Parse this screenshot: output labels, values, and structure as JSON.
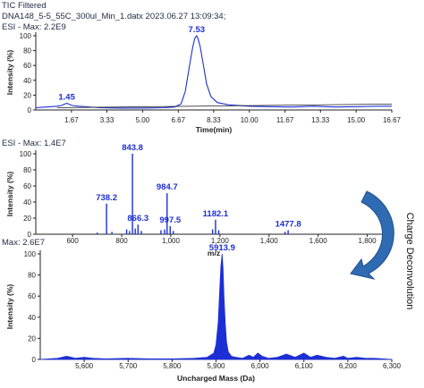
{
  "header": {
    "line1": "TIC Filtered",
    "line2": "DNA148_5-5_55C_300ul_Min_1.datx 2023.06.27 13:09:34;",
    "line3": "ESI -   Max: 2.2E9"
  },
  "side_label": "Charge Deconvolution",
  "colors": {
    "series": "#1c2fd6",
    "baseline": "#202020",
    "arrow": "#2f6bb3",
    "arrow_dark": "#1f4f8a",
    "axis": "#222222"
  },
  "chart_data": [
    {
      "type": "line",
      "title": "",
      "xlabel": "Time(min)",
      "ylabel": "Intensity (%)",
      "xlim": [
        0,
        16.67
      ],
      "ylim": [
        0,
        100
      ],
      "xticks": [
        "1.67",
        "3.33",
        "5.00",
        "6.67",
        "8.33",
        "10.00",
        "11.67",
        "13.33",
        "15.00",
        "16.67"
      ],
      "yticks": [
        "0",
        "20",
        "40",
        "60",
        "80",
        "100"
      ],
      "x_tick_values": [
        1.67,
        3.33,
        5.0,
        6.67,
        8.33,
        10.0,
        11.67,
        13.33,
        15.0,
        16.67
      ],
      "peak_labels": [
        {
          "text": "1.45",
          "x": 1.45,
          "y": 9
        },
        {
          "text": "7.53",
          "x": 7.53,
          "y": 100
        }
      ],
      "series": [
        {
          "x": [
            0,
            0.5,
            1.0,
            1.2,
            1.45,
            1.7,
            2.0,
            3.0,
            4.0,
            5.0,
            6.0,
            6.5,
            6.8,
            7.0,
            7.2,
            7.35,
            7.45,
            7.53,
            7.6,
            7.7,
            7.85,
            8.0,
            8.2,
            8.5,
            9.0,
            10.0,
            11.0,
            12.0,
            13.0,
            14.0,
            15.0,
            16.0,
            16.67
          ],
          "y": [
            3,
            4,
            5,
            6,
            9,
            6,
            5,
            3,
            2.5,
            2.5,
            3,
            4,
            8,
            25,
            60,
            85,
            97,
            100,
            96,
            85,
            60,
            35,
            18,
            10,
            7,
            5,
            4.5,
            4,
            5,
            4,
            4.5,
            5,
            5
          ]
        }
      ],
      "baseline": {
        "x": [
          1.0,
          16.67
        ],
        "y": [
          3,
          8
        ]
      }
    },
    {
      "type": "bar",
      "title": "",
      "max_label": "ESI -   Max: 1.4E7",
      "xlabel": "m/z",
      "ylabel": "Intensity (%)",
      "xlim": [
        450,
        1900
      ],
      "ylim": [
        0,
        100
      ],
      "xticks": [
        "600",
        "800",
        "1,000",
        "1,200",
        "1,400",
        "1,600",
        "1,800"
      ],
      "x_tick_values": [
        600,
        800,
        1000,
        1200,
        1400,
        1600,
        1800
      ],
      "yticks": [
        "0",
        "20",
        "40",
        "60",
        "80",
        "100"
      ],
      "peaks": [
        {
          "mz": 738.2,
          "y": 38
        },
        {
          "mz": 843.8,
          "y": 100
        },
        {
          "mz": 866.3,
          "y": 12
        },
        {
          "mz": 984.7,
          "y": 51
        },
        {
          "mz": 997.5,
          "y": 10
        },
        {
          "mz": 1182.1,
          "y": 18
        },
        {
          "mz": 1477.8,
          "y": 5
        },
        {
          "mz": 820,
          "y": 6
        },
        {
          "mz": 832,
          "y": 4
        },
        {
          "mz": 855,
          "y": 7
        },
        {
          "mz": 880,
          "y": 4
        },
        {
          "mz": 960,
          "y": 5
        },
        {
          "mz": 975,
          "y": 6
        },
        {
          "mz": 1010,
          "y": 4
        },
        {
          "mz": 1170,
          "y": 6
        },
        {
          "mz": 1195,
          "y": 5
        },
        {
          "mz": 1465,
          "y": 3
        },
        {
          "mz": 700,
          "y": 2
        },
        {
          "mz": 760,
          "y": 3
        }
      ],
      "peak_labels": [
        {
          "text": "738.2",
          "x": 738.2,
          "y": 38
        },
        {
          "text": "843.8",
          "x": 843.8,
          "y": 100
        },
        {
          "text": "866.3",
          "x": 866.3,
          "y": 12
        },
        {
          "text": "984.7",
          "x": 984.7,
          "y": 51
        },
        {
          "text": "997.5",
          "x": 997.5,
          "y": 10
        },
        {
          "text": "1182.1",
          "x": 1182.1,
          "y": 18
        },
        {
          "text": "1477.8",
          "x": 1477.8,
          "y": 5
        }
      ]
    },
    {
      "type": "area",
      "title": "",
      "max_label": "Max: 2.6E7",
      "xlabel": "Uncharged Mass (Da)",
      "ylabel": "Intensity (%)",
      "xlim": [
        5500,
        6300
      ],
      "ylim": [
        0,
        100
      ],
      "xticks": [
        "5,600",
        "5,700",
        "5,800",
        "5,900",
        "6,000",
        "6,100",
        "6,200",
        "6,300"
      ],
      "x_tick_values": [
        5600,
        5700,
        5800,
        5900,
        6000,
        6100,
        6200,
        6300
      ],
      "yticks": [
        "0",
        "20",
        "40",
        "60",
        "80",
        "100"
      ],
      "peak_labels": [
        {
          "text": "5913.9",
          "x": 5913.9,
          "y": 100
        }
      ],
      "series": [
        {
          "x": [
            5500,
            5540,
            5560,
            5580,
            5600,
            5620,
            5650,
            5700,
            5750,
            5800,
            5850,
            5880,
            5895,
            5900,
            5905,
            5908,
            5911,
            5913.9,
            5916,
            5918,
            5921,
            5924,
            5928,
            5935,
            5945,
            5960,
            5975,
            5985,
            5995,
            6005,
            6020,
            6040,
            6060,
            6080,
            6100,
            6115,
            6130,
            6150,
            6170,
            6190,
            6200,
            6220,
            6240,
            6260,
            6280,
            6300
          ],
          "y": [
            0,
            1,
            3,
            1,
            2,
            1,
            0.5,
            1,
            0.5,
            0.5,
            1,
            2,
            6,
            14,
            35,
            62,
            88,
            100,
            86,
            60,
            34,
            16,
            7,
            3,
            2,
            1,
            4,
            2,
            6,
            3,
            1,
            2,
            5,
            2,
            6,
            2,
            4,
            2,
            1,
            3,
            1,
            2,
            1,
            1,
            0.5,
            0
          ]
        }
      ]
    }
  ]
}
